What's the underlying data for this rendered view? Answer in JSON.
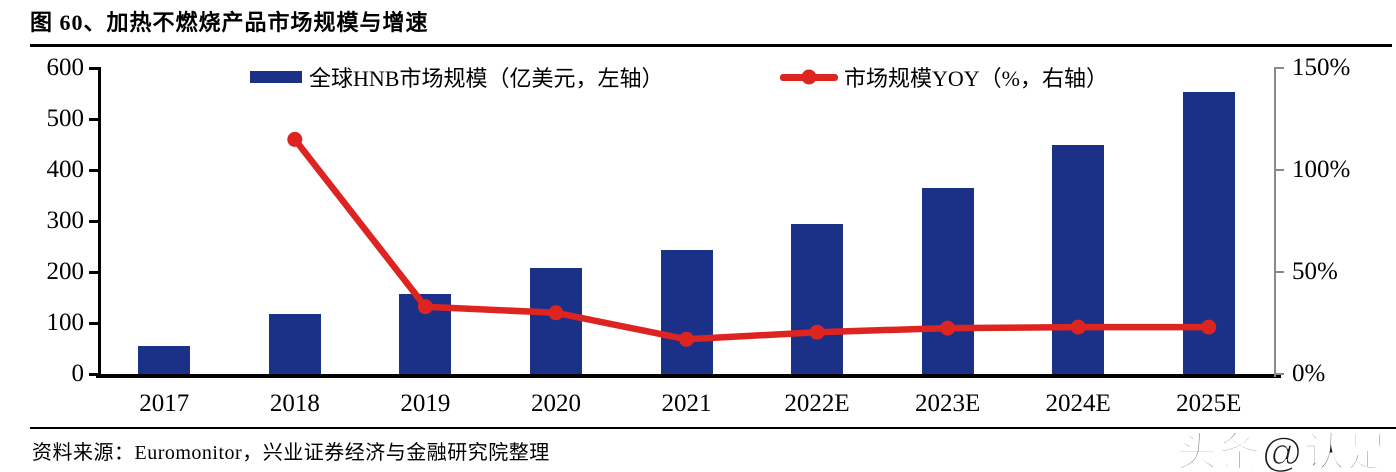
{
  "header": {
    "title": "图 60、加热不燃烧产品市场规模与增速"
  },
  "footer": {
    "source": "资料来源：Euromonitor，兴业证券经济与金融研究院整理",
    "watermark": "头条@认是"
  },
  "colors": {
    "bar": "#1B3087",
    "line": "#DE2421",
    "axis": "#000000",
    "right_axis": "#8a8a8a"
  },
  "chart_data": {
    "type": "combo",
    "categories": [
      "2017",
      "2018",
      "2019",
      "2020",
      "2021",
      "2022E",
      "2023E",
      "2024E",
      "2025E"
    ],
    "series": [
      {
        "name": "全球HNB市场规模（亿美元，左轴）",
        "type": "bar",
        "axis": "left",
        "color": "#1B3087",
        "values": [
          55,
          117,
          157,
          207,
          243,
          295,
          364,
          450,
          553
        ]
      },
      {
        "name": "市场规模YOY（%，右轴）",
        "type": "line",
        "axis": "right",
        "color": "#DE2421",
        "values": [
          null,
          115,
          33,
          30,
          17,
          20.5,
          22.5,
          23,
          23
        ]
      }
    ],
    "left_axis": {
      "min": 0,
      "max": 600,
      "tick_values": [
        0,
        100,
        200,
        300,
        400,
        500,
        600
      ],
      "tick_labels": [
        "0",
        "100",
        "200",
        "300",
        "400",
        "500",
        "600"
      ]
    },
    "right_axis": {
      "min": 0,
      "max": 150,
      "tick_values": [
        0,
        50,
        100,
        150
      ],
      "tick_labels": [
        "0%",
        "50%",
        "100%",
        "150%"
      ]
    },
    "legend_position": "top-center",
    "grid": false
  }
}
